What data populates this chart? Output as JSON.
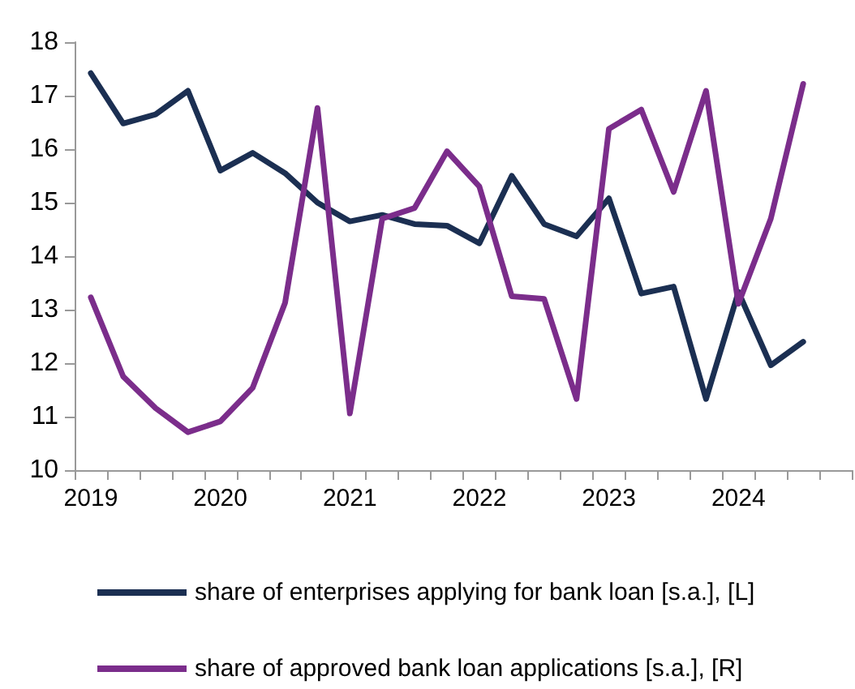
{
  "chart_data": {
    "type": "line",
    "categories": [
      "2019",
      null,
      null,
      null,
      "2020",
      null,
      null,
      null,
      "2021",
      null,
      null,
      null,
      "2022",
      null,
      null,
      null,
      "2023",
      null,
      null,
      null,
      "2024",
      null,
      null,
      null
    ],
    "ylim": [
      10,
      18
    ],
    "yticks": [
      10,
      11,
      12,
      13,
      14,
      15,
      16,
      17,
      18
    ],
    "grid": false,
    "legend": "bottom",
    "marker": "none",
    "line_style": "solid",
    "series": [
      {
        "name": "share of enterprises applying for bank loan [s.a.], [L]",
        "color": "#1b2f52",
        "values": [
          17.42,
          16.48,
          16.65,
          17.09,
          15.6,
          15.93,
          15.55,
          15.0,
          14.65,
          14.77,
          14.6,
          14.57,
          14.24,
          15.5,
          14.6,
          14.37,
          15.08,
          13.3,
          13.43,
          11.33,
          13.33,
          11.96,
          12.4,
          null
        ]
      },
      {
        "name": "share of approved bank loan applications [s.a.], [R]",
        "color": "#7b2d8b",
        "values": [
          13.23,
          11.75,
          11.16,
          10.71,
          10.91,
          11.54,
          13.13,
          16.77,
          11.06,
          14.7,
          14.9,
          15.96,
          15.3,
          13.25,
          13.2,
          11.33,
          16.38,
          16.74,
          15.2,
          17.09,
          13.11,
          14.7,
          17.22,
          null
        ]
      }
    ]
  }
}
